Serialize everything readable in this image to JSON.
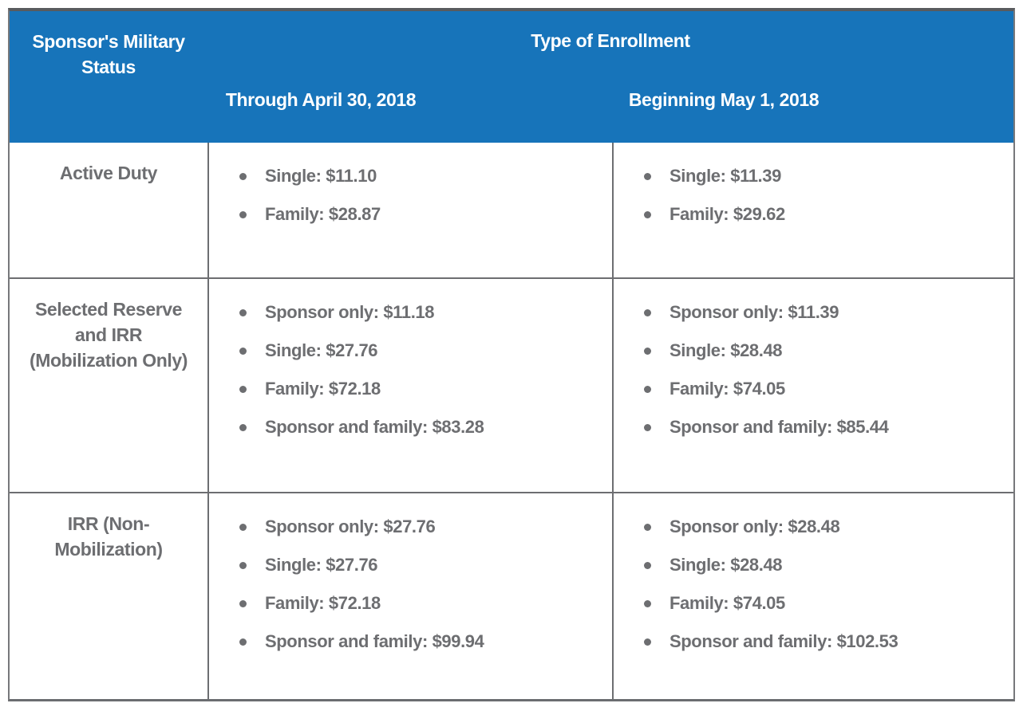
{
  "header": {
    "status_column_title": "Sponsor's Military Status",
    "enrollment_group_title": "Type of Enrollment",
    "through_column_title": "Through April 30, 2018",
    "beginning_column_title": "Beginning May 1, 2018"
  },
  "rows": [
    {
      "status": "Active Duty",
      "through": [
        "Single: $11.10",
        "Family: $28.87"
      ],
      "beginning": [
        "Single: $11.39",
        "Family: $29.62"
      ]
    },
    {
      "status": "Selected Reserve and IRR (Mobilization Only)",
      "through": [
        "Sponsor only: $11.18",
        "Single: $27.76",
        "Family: $72.18",
        "Sponsor and family: $83.28"
      ],
      "beginning": [
        "Sponsor only: $11.39",
        "Single: $28.48",
        "Family: $74.05",
        "Sponsor and family: $85.44"
      ]
    },
    {
      "status": "IRR (Non-Mobilization)",
      "through": [
        "Sponsor only: $27.76",
        "Single: $27.76",
        "Family: $72.18",
        "Sponsor and family: $99.94"
      ],
      "beginning": [
        "Sponsor only: $28.48",
        "Single: $28.48",
        "Family: $74.05",
        "Sponsor and family: $102.53"
      ]
    }
  ],
  "colors": {
    "header_background": "#1774BA",
    "header_text": "#FFFFFF",
    "body_text": "#6D6E71",
    "border": "#6D6E71"
  }
}
